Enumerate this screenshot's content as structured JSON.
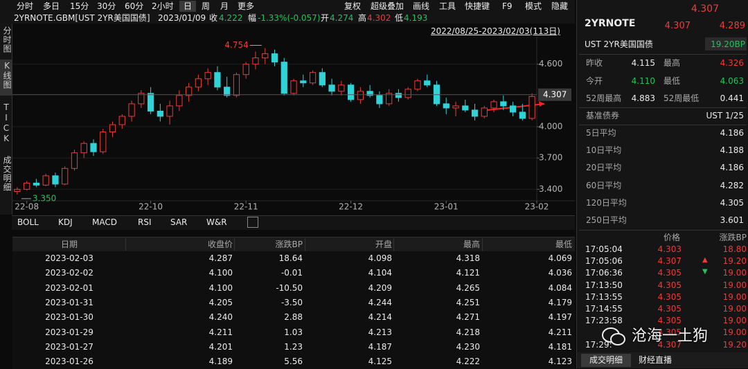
{
  "toolbar": {
    "left": [
      "分时",
      "多日",
      "15分",
      "30分",
      "60分",
      "2小时",
      "日",
      "周",
      "月",
      "更多"
    ],
    "right": [
      "复权",
      "超级叠加",
      "画线",
      "工具",
      "快捷键",
      "F9",
      "模式",
      "隐藏"
    ]
  },
  "quote": {
    "symbol": "2YRNOTE.GBM[UST 2YR美国国债]",
    "date": "2023/01/09",
    "close_label": "收",
    "close": "4.222",
    "change_label": "幅",
    "change": "-1.33%(-0.057)",
    "open_label": "开",
    "open": "4.274",
    "high_label": "高",
    "high": "4.302",
    "low_label": "低",
    "low": "4.193"
  },
  "range": "2022/08/25-2023/02/03(113日)",
  "side_tabs": [
    "分时图",
    "K线图",
    "TICK",
    "成交明细"
  ],
  "chart_data": {
    "type": "candlestick",
    "open": [
      3.38,
      3.4,
      3.46,
      3.44,
      3.53,
      3.45,
      3.6,
      3.75,
      3.84,
      3.76,
      3.95,
      4.02,
      4.1,
      4.22,
      4.32,
      4.15,
      4.1,
      4.2,
      4.3,
      4.38,
      4.46,
      4.52,
      4.38,
      4.3,
      4.5,
      4.6,
      4.66,
      4.7,
      4.62,
      4.32,
      4.44,
      4.42,
      4.52,
      4.4,
      4.34,
      4.4,
      4.26,
      4.34,
      4.3,
      4.22,
      4.32,
      4.28,
      4.36,
      4.44,
      4.4,
      4.22,
      4.18,
      4.2,
      4.16,
      4.1,
      4.18,
      4.24,
      4.2,
      4.14,
      4.08
    ],
    "high": [
      3.42,
      3.48,
      3.5,
      3.55,
      3.56,
      3.62,
      3.78,
      3.86,
      3.88,
      3.98,
      4.05,
      4.12,
      4.25,
      4.35,
      4.38,
      4.22,
      4.25,
      4.35,
      4.42,
      4.5,
      4.56,
      4.58,
      4.48,
      4.52,
      4.62,
      4.72,
      4.754,
      4.74,
      4.66,
      4.46,
      4.5,
      4.54,
      4.56,
      4.46,
      4.44,
      4.42,
      4.38,
      4.4,
      4.34,
      4.36,
      4.36,
      4.38,
      4.46,
      4.5,
      4.44,
      4.28,
      4.24,
      4.26,
      4.22,
      4.2,
      4.26,
      4.3,
      4.24,
      4.22,
      4.32
    ],
    "low": [
      3.35,
      3.39,
      3.42,
      3.43,
      3.42,
      3.44,
      3.58,
      3.7,
      3.72,
      3.74,
      3.9,
      3.98,
      4.05,
      4.18,
      4.12,
      4.05,
      4.02,
      4.15,
      4.24,
      4.34,
      4.4,
      4.35,
      4.28,
      4.28,
      4.46,
      4.55,
      4.6,
      4.58,
      4.3,
      4.3,
      4.38,
      4.4,
      4.38,
      4.3,
      4.3,
      4.24,
      4.22,
      4.28,
      4.18,
      4.2,
      4.24,
      4.26,
      4.34,
      4.38,
      4.2,
      4.12,
      4.1,
      4.14,
      4.06,
      4.08,
      4.14,
      4.16,
      4.1,
      4.06,
      4.06
    ],
    "close": [
      3.4,
      3.46,
      3.44,
      3.53,
      3.45,
      3.6,
      3.75,
      3.84,
      3.76,
      3.95,
      4.02,
      4.1,
      4.22,
      4.32,
      4.15,
      4.1,
      4.2,
      4.3,
      4.38,
      4.46,
      4.52,
      4.38,
      4.3,
      4.5,
      4.6,
      4.66,
      4.7,
      4.62,
      4.32,
      4.44,
      4.42,
      4.52,
      4.4,
      4.34,
      4.4,
      4.26,
      4.34,
      4.3,
      4.22,
      4.32,
      4.28,
      4.36,
      4.44,
      4.4,
      4.22,
      4.18,
      4.2,
      4.16,
      4.1,
      4.18,
      4.24,
      4.2,
      4.14,
      4.08,
      4.29
    ],
    "up_color": "#ef3b3b",
    "down_color": "#2fd3d8",
    "ylim": [
      3.29,
      4.87
    ],
    "yticks": [
      {
        "value": 3.4,
        "label": "3.400"
      },
      {
        "value": 3.7,
        "label": "3.700"
      },
      {
        "value": 4.0,
        "label": "4.000"
      },
      {
        "value": 4.6,
        "label": "4.600"
      }
    ],
    "xticks": [
      {
        "value": 1,
        "label": "22-08"
      },
      {
        "value": 14,
        "label": "22-10"
      },
      {
        "value": 24,
        "label": "22-11"
      },
      {
        "value": 35,
        "label": "22-12"
      },
      {
        "value": 45,
        "label": "23-01"
      },
      {
        "value": 54.5,
        "label": "23-02"
      }
    ],
    "high_label": "4.754",
    "low_label": "3.350",
    "last_price": "4.307"
  },
  "indicators": [
    "BOLL",
    "KDJ",
    "MACD",
    "RSI",
    "SAR",
    "W&R"
  ],
  "table": {
    "columns": [
      "日期",
      "收盘价",
      "涨跌BP",
      "开盘",
      "最高",
      "最低"
    ],
    "rows": [
      [
        "2023-02-03",
        "4.287",
        "18.64",
        "4.098",
        "4.318",
        "4.069"
      ],
      [
        "2023-02-02",
        "4.100",
        "-0.01",
        "4.104",
        "4.121",
        "4.036"
      ],
      [
        "2023-02-01",
        "4.100",
        "-10.50",
        "4.209",
        "4.265",
        "4.084"
      ],
      [
        "2023-01-31",
        "4.205",
        "-3.50",
        "4.244",
        "4.251",
        "4.179"
      ],
      [
        "2023-01-30",
        "4.240",
        "2.88",
        "4.214",
        "4.271",
        "4.197"
      ],
      [
        "2023-01-29",
        "4.211",
        "1.03",
        "4.213",
        "4.218",
        "4.211"
      ],
      [
        "2023-01-27",
        "4.201",
        "1.23",
        "4.187",
        "4.230",
        "4.181"
      ],
      [
        "2023-01-26",
        "4.189",
        "5.56",
        "4.125",
        "4.222",
        "4.123"
      ]
    ]
  },
  "panel": {
    "top_price": "4.307",
    "code": "2YRNOTE",
    "bid": "4.307",
    "ask": "4.289",
    "name": "UST 2YR美国国债",
    "change": "19.20BP",
    "stats": [
      [
        "昨收",
        "4.115",
        "最高",
        "4.326"
      ],
      [
        "今开",
        "4.110",
        "最低",
        "4.063"
      ],
      [
        "52周最高",
        "4.883",
        "52周最低",
        "0.441"
      ]
    ],
    "benchmark": [
      "基准债券",
      "UST 1/25"
    ],
    "averages": [
      [
        "5日平均",
        "4.186"
      ],
      [
        "10日平均",
        "4.188"
      ],
      [
        "20日平均",
        "4.186"
      ],
      [
        "60日平均",
        "4.282"
      ],
      [
        "120日平均",
        "4.305"
      ],
      [
        "250日平均",
        "3.601"
      ]
    ],
    "tick_header": [
      "价格",
      "涨跌BP"
    ],
    "ticks": [
      [
        "17:05:04",
        "4.303",
        "18.80"
      ],
      [
        "17:05:06",
        "4.307",
        "19.20"
      ],
      [
        "17:06:36",
        "4.305",
        "19.00"
      ],
      [
        "17:13:50",
        "4.305",
        "19.00"
      ],
      [
        "17:13:55",
        "4.305",
        "19.00"
      ],
      [
        "17:14:55",
        "4.305",
        "19.00"
      ],
      [
        "17:23:58",
        "4.305",
        "19.00"
      ],
      [
        null,
        "4.305",
        "19.00"
      ],
      [
        "17:29:",
        "4.307",
        "19.20"
      ]
    ],
    "tabs": [
      "成交明细",
      "财经直播"
    ]
  },
  "watermark": "沧海一土狗"
}
